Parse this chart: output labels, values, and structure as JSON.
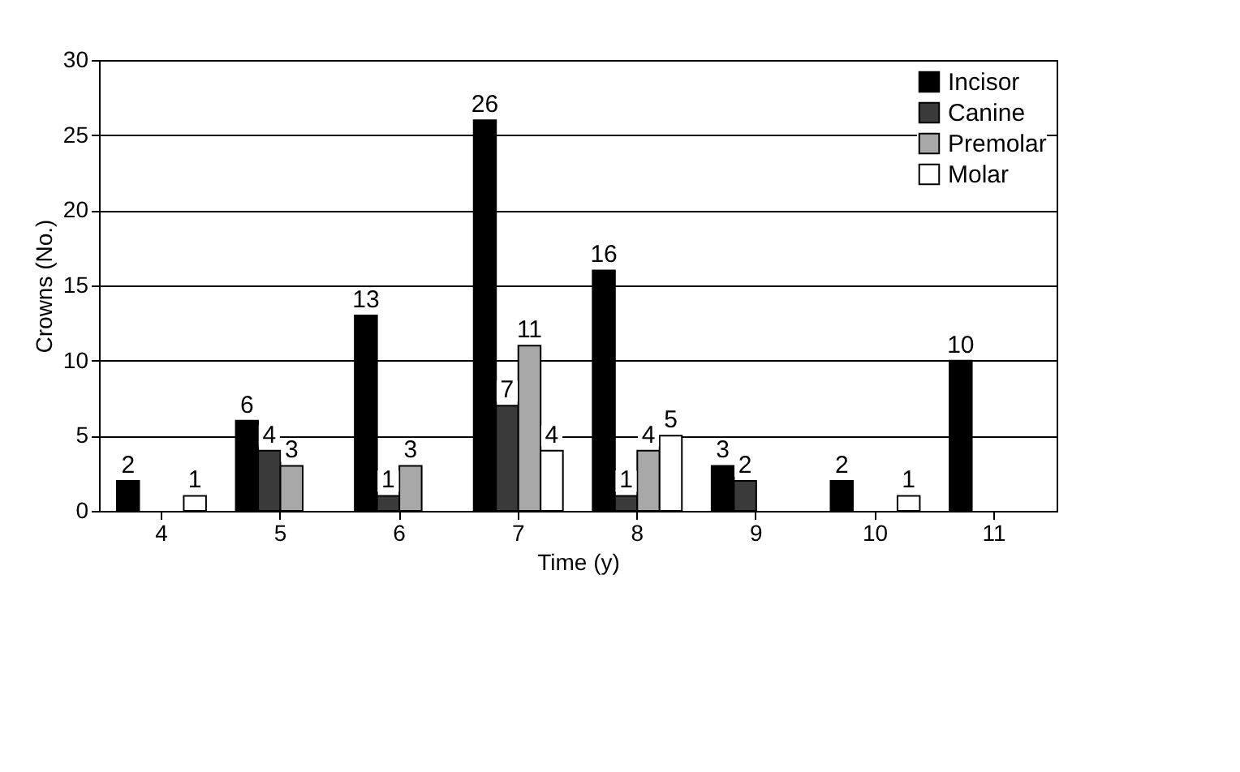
{
  "chart_data": {
    "type": "bar",
    "xlabel": "Time (y)",
    "ylabel": "Crowns (No.)",
    "categories": [
      "4",
      "5",
      "6",
      "7",
      "8",
      "9",
      "10",
      "11"
    ],
    "series": [
      {
        "name": "Incisor",
        "color": "#000000",
        "values": [
          2,
          6,
          13,
          26,
          16,
          3,
          2,
          10
        ]
      },
      {
        "name": "Canine",
        "color": "#3a3a3a",
        "values": [
          null,
          4,
          1,
          7,
          1,
          2,
          null,
          null
        ]
      },
      {
        "name": "Premolar",
        "color": "#a8a8a8",
        "values": [
          null,
          3,
          3,
          11,
          4,
          null,
          null,
          null
        ]
      },
      {
        "name": "Molar",
        "color": "#ffffff",
        "values": [
          1,
          null,
          null,
          4,
          5,
          null,
          1,
          null
        ]
      }
    ],
    "ylim": [
      0,
      30
    ],
    "yticks": [
      0,
      5,
      10,
      15,
      20,
      25,
      30
    ],
    "grid": "y",
    "legend": "top right",
    "data_labels": true
  }
}
